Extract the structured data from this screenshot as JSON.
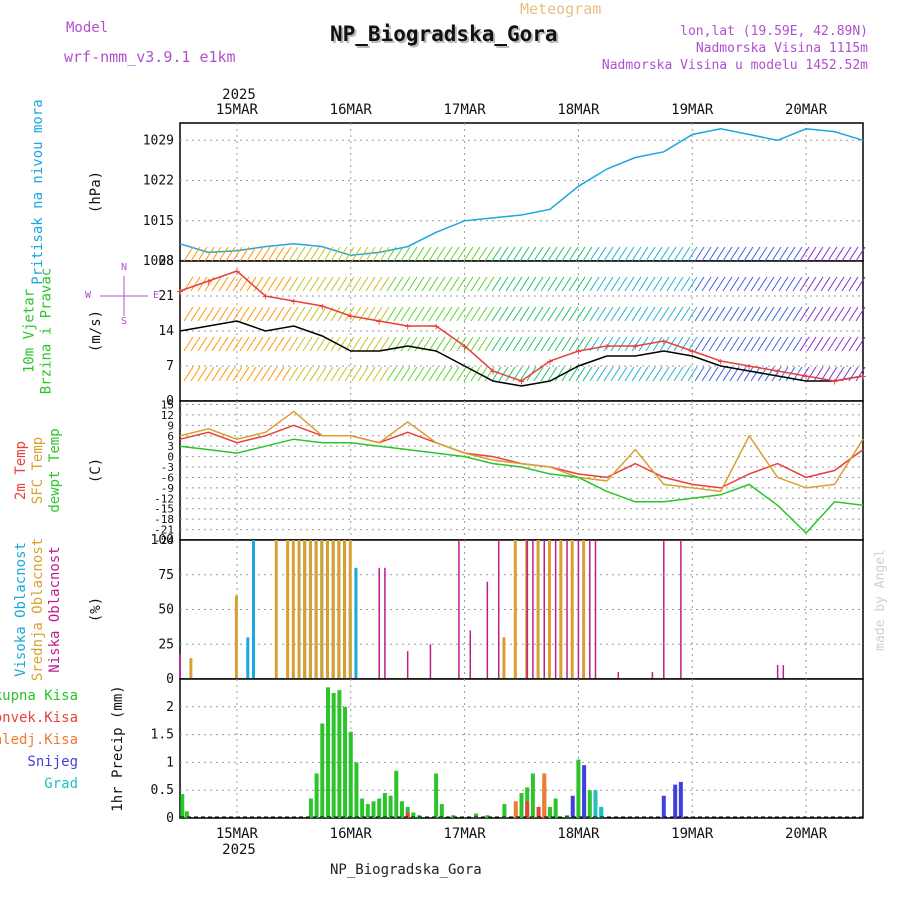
{
  "header": {
    "model_label": "Model",
    "model_name": "wrf-nmm_v3.9.1 e1km",
    "plot_type": "Meteogram",
    "station": "NP_Biogradska_Gora",
    "coords": "lon,lat (19.59E, 42.89N)",
    "elevation": "Nadmorska Visina 1115m",
    "model_elevation": "Nadmorska Visina u modelu 1452.52m",
    "top_year": "2025",
    "bottom_year": "2025",
    "footer_station": "NP_Biogradska_Gora",
    "watermark": "made by Angel"
  },
  "colors": {
    "pressure": "#1ba8e0",
    "wind_speed": "#000000",
    "wind_gust": "#e8413b",
    "temp_2m": "#e8413b",
    "temp_sfc": "#d8a030",
    "dewpoint": "#2bc42b",
    "cloud_high": "#1ba8e0",
    "cloud_mid": "#d8a030",
    "cloud_low": "#c01c8c",
    "precip_total": "#2bc42b",
    "precip_conv": "#e8413b",
    "precip_frozen": "#f07a30",
    "snow": "#4040e0",
    "graupel": "#20c0c0",
    "purple_text": "#b050d0"
  },
  "chart_data": {
    "x_ticks": [
      "15MAR",
      "16MAR",
      "17MAR",
      "18MAR",
      "19MAR",
      "20MAR"
    ],
    "x_range_days": [
      14.5,
      20.5
    ],
    "panels": [
      {
        "type": "line",
        "label_lines": [
          "Pritisak na nivou mora"
        ],
        "unit": "(hPa)",
        "yticks": [
          "1008",
          "1015",
          "1022",
          "1029"
        ],
        "ylim": [
          1008,
          1032
        ],
        "series": [
          {
            "x": [
              14.5,
              14.75,
              15.0,
              15.25,
              15.5,
              15.75,
              16.0,
              16.25,
              16.5,
              16.75,
              17.0,
              17.25,
              17.5,
              17.75,
              18.0,
              18.25,
              18.5,
              18.75,
              19.0,
              19.25,
              19.5,
              19.75,
              20.0,
              20.25,
              20.5
            ],
            "y": [
              1011,
              1009.5,
              1009.8,
              1010.5,
              1011,
              1010.5,
              1009,
              1009.5,
              1010.5,
              1013,
              1015,
              1015.5,
              1016,
              1017,
              1021,
              1024,
              1026,
              1027,
              1030,
              1031,
              1030,
              1029,
              1031,
              1030.5,
              1029
            ]
          }
        ]
      },
      {
        "type": "line",
        "label_lines": [
          "10m Vjetar",
          "Brzina i Pravac"
        ],
        "unit": "(m/s)",
        "yticks": [
          "0",
          "7",
          "14",
          "21",
          "28"
        ],
        "ylim": [
          0,
          28
        ],
        "compass": [
          "N",
          "W",
          "S",
          "E"
        ],
        "series": [
          {
            "name": "speed",
            "x": [
              14.5,
              14.75,
              15.0,
              15.25,
              15.5,
              15.75,
              16.0,
              16.25,
              16.5,
              16.75,
              17.0,
              17.25,
              17.5,
              17.75,
              18.0,
              18.25,
              18.5,
              18.75,
              19.0,
              19.25,
              19.5,
              19.75,
              20.0,
              20.25,
              20.5
            ],
            "y": [
              14,
              15,
              16,
              14,
              15,
              13,
              10,
              10,
              11,
              10,
              7,
              4,
              3,
              4,
              7,
              9,
              9,
              10,
              9,
              7,
              6,
              5,
              4,
              4,
              5
            ]
          },
          {
            "name": "gust",
            "x": [
              14.5,
              14.75,
              15.0,
              15.25,
              15.5,
              15.75,
              16.0,
              16.25,
              16.5,
              16.75,
              17.0,
              17.25,
              17.5,
              17.75,
              18.0,
              18.25,
              18.5,
              18.75,
              19.0,
              19.25,
              19.5,
              19.75,
              20.0,
              20.25,
              20.5
            ],
            "y": [
              22,
              24,
              26,
              21,
              20,
              19,
              17,
              16,
              15,
              15,
              11,
              6,
              4,
              8,
              10,
              11,
              11,
              12,
              10,
              8,
              7,
              6,
              5,
              4,
              5
            ]
          }
        ]
      },
      {
        "type": "line",
        "label_lines": [
          "2m Temp",
          "SFC Temp",
          "dewpt Temp"
        ],
        "unit": "(C)",
        "yticks": [
          "-24",
          "-21",
          "-18",
          "-15",
          "-12",
          "-9",
          "-6",
          "-3",
          "0",
          "3",
          "6",
          "9",
          "12",
          "15"
        ],
        "ylim": [
          -24,
          16
        ],
        "series": [
          {
            "name": "2m",
            "x": [
              14.5,
              14.75,
              15.0,
              15.25,
              15.5,
              15.75,
              16.0,
              16.25,
              16.5,
              16.75,
              17.0,
              17.25,
              17.5,
              17.75,
              18.0,
              18.25,
              18.5,
              18.75,
              19.0,
              19.25,
              19.5,
              19.75,
              20.0,
              20.25,
              20.5
            ],
            "y": [
              5,
              7,
              4,
              6,
              9,
              6,
              6,
              4,
              7,
              4,
              1,
              0,
              -2,
              -3,
              -5,
              -6,
              -2,
              -6,
              -8,
              -9,
              -5,
              -2,
              -6,
              -4,
              2
            ]
          },
          {
            "name": "sfc",
            "x": [
              14.5,
              14.75,
              15.0,
              15.25,
              15.5,
              15.75,
              16.0,
              16.25,
              16.5,
              16.75,
              17.0,
              17.25,
              17.5,
              17.75,
              18.0,
              18.25,
              18.5,
              18.75,
              19.0,
              19.25,
              19.5,
              19.75,
              20.0,
              20.25,
              20.5
            ],
            "y": [
              6,
              8,
              5,
              7,
              13,
              6,
              6,
              4,
              10,
              4,
              1,
              -1,
              -2,
              -3,
              -6,
              -7,
              2,
              -8,
              -9,
              -10,
              6,
              -6,
              -9,
              -8,
              5
            ]
          },
          {
            "name": "dewpt",
            "x": [
              14.5,
              14.75,
              15.0,
              15.25,
              15.5,
              15.75,
              16.0,
              16.25,
              16.5,
              16.75,
              17.0,
              17.25,
              17.5,
              17.75,
              18.0,
              18.25,
              18.5,
              18.75,
              19.0,
              19.25,
              19.5,
              19.75,
              20.0,
              20.25,
              20.5
            ],
            "y": [
              3,
              2,
              1,
              3,
              5,
              4,
              4,
              3,
              2,
              1,
              0,
              -2,
              -3,
              -5,
              -6,
              -10,
              -13,
              -13,
              -12,
              -11,
              -8,
              -14,
              -22,
              -13,
              -14
            ]
          }
        ]
      },
      {
        "type": "bar",
        "label_lines": [
          "Visoka Oblacnost",
          "Srednja Oblacnost",
          "Niska Oblacnost"
        ],
        "unit": "(%)",
        "yticks": [
          "0",
          "25",
          "50",
          "75",
          "100"
        ],
        "ylim": [
          0,
          100
        ],
        "series": [
          {
            "name": "high",
            "x": [
              15.1,
              15.15,
              15.5,
              15.55,
              15.6,
              15.65,
              15.7,
              15.75,
              15.8,
              15.85,
              15.9,
              15.95,
              16.0,
              16.05
            ],
            "y": [
              30,
              100,
              5,
              100,
              100,
              100,
              100,
              100,
              100,
              100,
              100,
              100,
              50,
              80
            ]
          },
          {
            "name": "mid",
            "x": [
              14.6,
              15.0,
              15.35,
              15.45,
              15.5,
              15.55,
              15.6,
              15.65,
              15.7,
              15.75,
              15.8,
              15.85,
              15.9,
              15.95,
              16.0,
              17.35,
              17.45,
              17.55,
              17.65,
              17.75,
              17.85,
              17.95,
              18.05
            ],
            "y": [
              15,
              60,
              100,
              100,
              100,
              100,
              100,
              100,
              100,
              100,
              100,
              100,
              100,
              100,
              100,
              30,
              100,
              100,
              100,
              100,
              100,
              100,
              100
            ]
          },
          {
            "name": "low",
            "x": [
              14.5,
              16.25,
              16.3,
              16.5,
              16.7,
              16.95,
              17.05,
              17.2,
              17.3,
              17.55,
              17.6,
              17.7,
              17.8,
              17.9,
              18.0,
              18.1,
              18.15,
              18.35,
              18.65,
              18.75,
              18.9,
              19.75,
              19.8
            ],
            "y": [
              18,
              80,
              80,
              20,
              25,
              100,
              35,
              70,
              100,
              100,
              100,
              100,
              100,
              100,
              100,
              100,
              100,
              5,
              5,
              100,
              100,
              10,
              10
            ]
          }
        ]
      },
      {
        "type": "bar",
        "label_lines": [
          "Ukupna Kisa",
          "Konvek.Kisa",
          "Zaledj.Kisa",
          "Snijeg",
          "Grad"
        ],
        "unit": "1hr Precip (mm)",
        "yticks": [
          "0",
          "0.5",
          "1",
          "1.5",
          "2"
        ],
        "ylim": [
          0,
          2.5
        ],
        "series": [
          {
            "name": "total",
            "x": [
              14.52,
              14.56,
              15.65,
              15.7,
              15.75,
              15.8,
              15.85,
              15.9,
              15.95,
              16.0,
              16.05,
              16.1,
              16.15,
              16.2,
              16.25,
              16.3,
              16.35,
              16.4,
              16.45,
              16.5,
              16.55,
              16.6,
              16.75,
              16.8,
              16.9,
              17.1,
              17.2,
              17.35,
              17.5,
              17.55,
              17.6,
              17.7,
              17.75,
              17.8,
              17.9,
              18.0,
              18.05,
              18.1,
              18.15,
              18.2
            ],
            "y": [
              0.43,
              0.12,
              0.35,
              0.8,
              1.7,
              2.35,
              2.25,
              2.3,
              2.0,
              1.55,
              1.0,
              0.35,
              0.25,
              0.3,
              0.35,
              0.45,
              0.4,
              0.85,
              0.3,
              0.2,
              0.1,
              0.05,
              0.8,
              0.25,
              0.05,
              0.08,
              0.05,
              0.25,
              0.45,
              0.55,
              0.8,
              0.6,
              0.2,
              0.35,
              0.05,
              1.05,
              0.6,
              0.5,
              0.45,
              0.15
            ]
          },
          {
            "name": "convective",
            "x": [
              16.5,
              17.55,
              17.65
            ],
            "y": [
              0.1,
              0.3,
              0.2
            ]
          },
          {
            "name": "frozen",
            "x": [
              17.45,
              17.7
            ],
            "y": [
              0.3,
              0.8
            ]
          },
          {
            "name": "snow",
            "x": [
              17.95,
              18.05,
              18.75,
              18.85,
              18.9
            ],
            "y": [
              0.4,
              0.95,
              0.4,
              0.6,
              0.65
            ]
          },
          {
            "name": "graupel",
            "x": [
              18.15,
              18.2
            ],
            "y": [
              0.5,
              0.2
            ]
          }
        ]
      }
    ]
  }
}
